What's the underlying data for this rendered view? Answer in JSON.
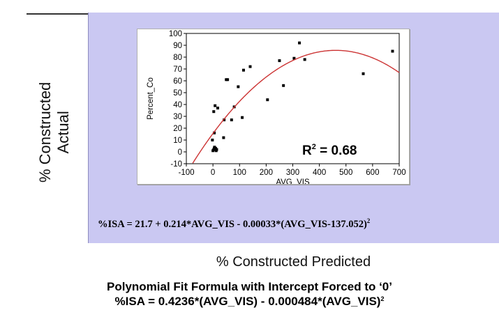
{
  "outer_chart": {
    "ylabel_line1": "% Constructed",
    "ylabel_line2": "Actual",
    "xlabel": "% Constructed Predicted",
    "panel_color": "#cac8f2"
  },
  "equation": {
    "text": "%ISA = 21.7 + 0.214*AVG_VIS - 0.00033*(AVG_VIS-137.052)",
    "superscript": "2"
  },
  "caption": {
    "title": "Polynomial Fit Formula with Intercept Forced to ‘0’",
    "formula": "%ISA = 0.4236*(AVG_VIS) - 0.000484*(AVG_VIS)",
    "superscript": "2"
  },
  "chart_data": {
    "type": "scatter",
    "title": "",
    "xlabel": "AVG_VIS",
    "ylabel": "Percent_Co",
    "xlim": [
      -100,
      700
    ],
    "ylim": [
      -10,
      100
    ],
    "x_ticks": [
      -100,
      0,
      100,
      200,
      300,
      400,
      500,
      600,
      700
    ],
    "y_ticks": [
      -10,
      0,
      10,
      20,
      30,
      40,
      50,
      60,
      70,
      80,
      90,
      100
    ],
    "grid": false,
    "annotation": {
      "text": "R",
      "superscript": "2",
      "suffix": " = 0.68"
    },
    "series": [
      {
        "kind": "points",
        "color": "#000000",
        "points": [
          [
            0,
            1
          ],
          [
            3,
            2
          ],
          [
            5,
            3
          ],
          [
            8,
            2
          ],
          [
            10,
            3
          ],
          [
            12,
            1
          ],
          [
            14,
            2
          ],
          [
            6,
            4
          ],
          [
            -2,
            10
          ],
          [
            5,
            16
          ],
          [
            3,
            34
          ],
          [
            8,
            39
          ],
          [
            18,
            37
          ],
          [
            40,
            12
          ],
          [
            42,
            27
          ],
          [
            50,
            61
          ],
          [
            55,
            61
          ],
          [
            70,
            27
          ],
          [
            80,
            38
          ],
          [
            95,
            55
          ],
          [
            110,
            29
          ],
          [
            115,
            69
          ],
          [
            140,
            72
          ],
          [
            205,
            44
          ],
          [
            250,
            77
          ],
          [
            265,
            56
          ],
          [
            305,
            79
          ],
          [
            325,
            92
          ],
          [
            345,
            78
          ],
          [
            565,
            66
          ],
          [
            675,
            85
          ]
        ]
      },
      {
        "kind": "curve",
        "color": "#cc3333",
        "equation": "%ISA = 21.7 + 0.214*AVG_VIS - 0.00033*(AVG_VIS-137.052)^2",
        "coefficients": {
          "intercept": 21.7,
          "linear": 0.214,
          "quadratic": -0.00033,
          "center": 137.052
        },
        "x_range": [
          -100,
          700
        ]
      }
    ]
  }
}
